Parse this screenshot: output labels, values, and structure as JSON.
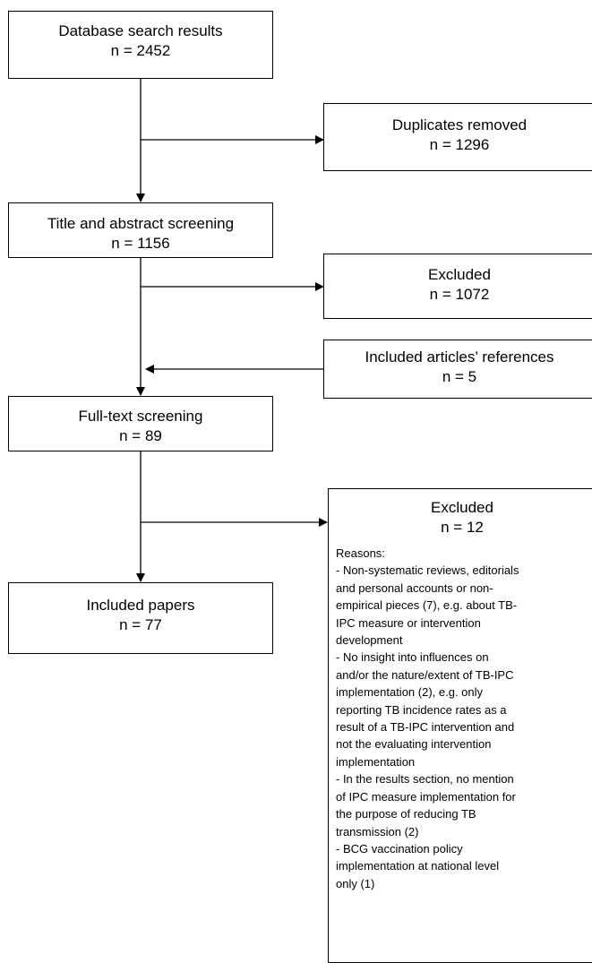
{
  "boxes": {
    "database_search": {
      "title": "Database search results",
      "count": "n = 2452"
    },
    "duplicates_removed": {
      "title": "Duplicates removed",
      "count": "n = 1296"
    },
    "title_abstract_screening": {
      "title": "Title and abstract screening",
      "count": "n = 1156"
    },
    "excluded_1": {
      "title": "Excluded",
      "count": "n = 1072"
    },
    "included_references": {
      "title": "Included articles’ references",
      "count": "n = 5"
    },
    "full_text_screening": {
      "title": "Full-text screening",
      "count": "n = 89"
    },
    "excluded_2": {
      "title": "Excluded",
      "count": "n = 12",
      "reasons_header": "Reasons:",
      "reasons": [
        "- Non-systematic reviews, editorials",
        "and personal accounts or non-",
        "empirical pieces (7), e.g. about TB-",
        "IPC measure or intervention",
        "development",
        "- No insight into influences on",
        "and/or the nature/extent of TB-IPC",
        "implementation (2), e.g. only",
        "reporting TB incidence rates as a",
        "result of a TB-IPC intervention and",
        "not the evaluating intervention",
        "implementation",
        "- In the results section, no mention",
        "of IPC measure implementation for",
        "the purpose of reducing TB",
        "transmission (2)",
        "- BCG vaccination policy",
        "implementation at national level",
        "only (1)"
      ]
    },
    "included_papers": {
      "title": "Included papers",
      "count": "n = 77"
    }
  }
}
